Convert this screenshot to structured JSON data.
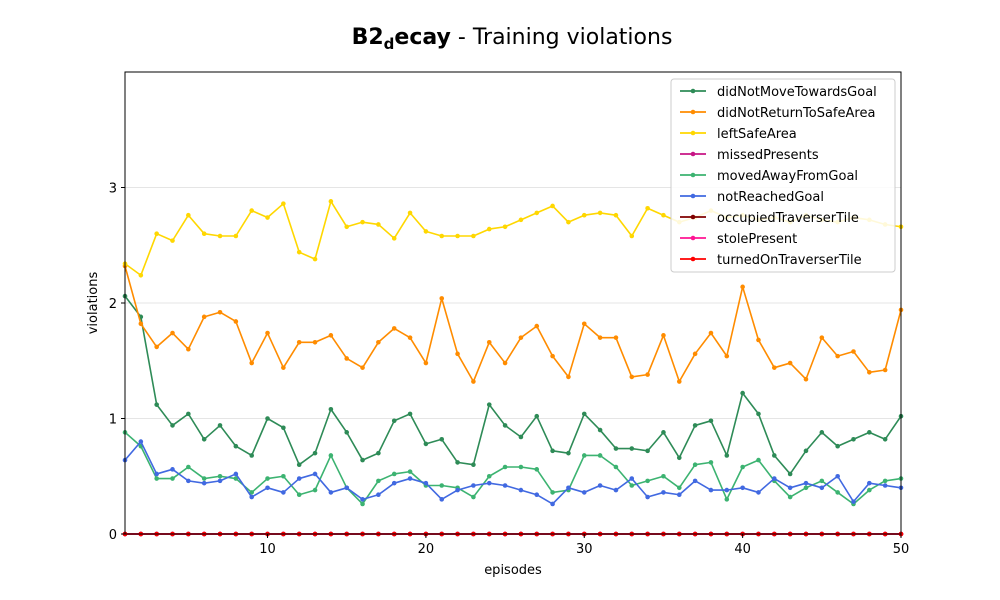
{
  "chart_data": {
    "type": "line",
    "title": {
      "prefix_bold": "B2",
      "subscript_bold": "d",
      "suffix_bold": "ecay",
      "rest": " - Training violations"
    },
    "xlabel": "episodes",
    "ylabel": "violations",
    "xlim": [
      1,
      50
    ],
    "ylim": [
      0,
      4
    ],
    "x_ticks": [
      10,
      20,
      30,
      40,
      50
    ],
    "y_ticks": [
      0,
      1,
      2,
      3
    ],
    "grid": "horizontal",
    "legend_position": "top-right",
    "x": [
      1,
      2,
      3,
      4,
      5,
      6,
      7,
      8,
      9,
      10,
      11,
      12,
      13,
      14,
      15,
      16,
      17,
      18,
      19,
      20,
      21,
      22,
      23,
      24,
      25,
      26,
      27,
      28,
      29,
      30,
      31,
      32,
      33,
      34,
      35,
      36,
      37,
      38,
      39,
      40,
      41,
      42,
      43,
      44,
      45,
      46,
      47,
      48,
      49,
      50
    ],
    "series": [
      {
        "name": "didNotMoveTowardsGoal",
        "color": "#2e8b57",
        "values": [
          2.06,
          1.88,
          1.12,
          0.94,
          1.04,
          0.82,
          0.94,
          0.76,
          0.68,
          1.0,
          0.92,
          0.6,
          0.7,
          1.08,
          0.88,
          0.64,
          0.7,
          0.98,
          1.04,
          0.78,
          0.82,
          0.62,
          0.6,
          1.12,
          0.94,
          0.84,
          1.02,
          0.72,
          0.7,
          1.04,
          0.9,
          0.74,
          0.74,
          0.72,
          0.88,
          0.66,
          0.94,
          0.98,
          0.68,
          1.22,
          1.04,
          0.68,
          0.52,
          0.72,
          0.88,
          0.76,
          0.82,
          0.88,
          0.82,
          1.02
        ]
      },
      {
        "name": "didNotReturnToSafeArea",
        "color": "#ff8c00",
        "values": [
          2.32,
          1.82,
          1.62,
          1.74,
          1.6,
          1.88,
          1.92,
          1.84,
          1.48,
          1.74,
          1.44,
          1.66,
          1.66,
          1.72,
          1.52,
          1.44,
          1.66,
          1.78,
          1.7,
          1.48,
          2.04,
          1.56,
          1.32,
          1.66,
          1.48,
          1.7,
          1.8,
          1.54,
          1.36,
          1.82,
          1.7,
          1.7,
          1.36,
          1.38,
          1.72,
          1.32,
          1.56,
          1.74,
          1.54,
          2.14,
          1.68,
          1.44,
          1.48,
          1.34,
          1.7,
          1.54,
          1.58,
          1.4,
          1.42,
          1.94
        ]
      },
      {
        "name": "leftSafeArea",
        "color": "#ffd700",
        "values": [
          2.34,
          2.24,
          2.6,
          2.54,
          2.76,
          2.6,
          2.58,
          2.58,
          2.8,
          2.74,
          2.86,
          2.44,
          2.38,
          2.88,
          2.66,
          2.7,
          2.68,
          2.56,
          2.78,
          2.62,
          2.58,
          2.58,
          2.58,
          2.64,
          2.66,
          2.72,
          2.78,
          2.84,
          2.7,
          2.76,
          2.78,
          2.76,
          2.58,
          2.82,
          2.76,
          2.7,
          2.74,
          2.8,
          2.74,
          2.76,
          2.72,
          2.74,
          2.7,
          2.76,
          2.72,
          2.7,
          2.74,
          2.72,
          2.68,
          2.66
        ]
      },
      {
        "name": "missedPresents",
        "color": "#c71585",
        "values": [
          0,
          0,
          0,
          0,
          0,
          0,
          0,
          0,
          0,
          0,
          0,
          0,
          0,
          0,
          0,
          0,
          0,
          0,
          0,
          0,
          0,
          0,
          0,
          0,
          0,
          0,
          0,
          0,
          0,
          0,
          0,
          0,
          0,
          0,
          0,
          0,
          0,
          0,
          0,
          0,
          0,
          0,
          0,
          0,
          0,
          0,
          0,
          0,
          0,
          0
        ]
      },
      {
        "name": "movedAwayFromGoal",
        "color": "#3cb371",
        "values": [
          0.88,
          0.76,
          0.48,
          0.48,
          0.58,
          0.48,
          0.5,
          0.48,
          0.36,
          0.48,
          0.5,
          0.34,
          0.38,
          0.68,
          0.4,
          0.26,
          0.46,
          0.52,
          0.54,
          0.42,
          0.42,
          0.4,
          0.32,
          0.5,
          0.58,
          0.58,
          0.56,
          0.36,
          0.38,
          0.68,
          0.68,
          0.58,
          0.42,
          0.46,
          0.5,
          0.4,
          0.6,
          0.62,
          0.3,
          0.58,
          0.64,
          0.46,
          0.32,
          0.4,
          0.46,
          0.36,
          0.26,
          0.38,
          0.46,
          0.48
        ]
      },
      {
        "name": "notReachedGoal",
        "color": "#4169e1",
        "values": [
          0.64,
          0.8,
          0.52,
          0.56,
          0.46,
          0.44,
          0.46,
          0.52,
          0.32,
          0.4,
          0.36,
          0.48,
          0.52,
          0.36,
          0.4,
          0.3,
          0.34,
          0.44,
          0.48,
          0.44,
          0.3,
          0.38,
          0.42,
          0.44,
          0.42,
          0.38,
          0.34,
          0.26,
          0.4,
          0.36,
          0.42,
          0.38,
          0.48,
          0.32,
          0.36,
          0.34,
          0.46,
          0.38,
          0.38,
          0.4,
          0.36,
          0.48,
          0.4,
          0.44,
          0.4,
          0.5,
          0.28,
          0.44,
          0.42,
          0.4
        ]
      },
      {
        "name": "occupiedTraverserTile",
        "color": "#800000",
        "values": [
          0,
          0,
          0,
          0,
          0,
          0,
          0,
          0,
          0,
          0,
          0,
          0,
          0,
          0,
          0,
          0,
          0,
          0,
          0,
          0,
          0,
          0,
          0,
          0,
          0,
          0,
          0,
          0,
          0,
          0,
          0,
          0,
          0,
          0,
          0,
          0,
          0,
          0,
          0,
          0,
          0,
          0,
          0,
          0,
          0,
          0,
          0,
          0,
          0,
          0
        ]
      },
      {
        "name": "stolePresent",
        "color": "#ff1493",
        "values": [
          0,
          0,
          0,
          0,
          0,
          0,
          0,
          0,
          0,
          0,
          0,
          0,
          0,
          0,
          0,
          0,
          0,
          0,
          0,
          0,
          0,
          0,
          0,
          0,
          0,
          0,
          0,
          0,
          0,
          0,
          0,
          0,
          0,
          0,
          0,
          0,
          0,
          0,
          0,
          0,
          0,
          0,
          0,
          0,
          0,
          0,
          0,
          0,
          0,
          0
        ]
      },
      {
        "name": "turnedOnTraverserTile",
        "color": "#ff0000",
        "values": [
          0,
          0,
          0,
          0,
          0,
          0,
          0,
          0,
          0,
          0,
          0,
          0,
          0,
          0,
          0,
          0,
          0,
          0,
          0,
          0,
          0,
          0,
          0,
          0,
          0,
          0,
          0,
          0,
          0,
          0,
          0,
          0,
          0,
          0,
          0,
          0,
          0,
          0,
          0,
          0,
          0,
          0,
          0,
          0,
          0,
          0,
          0,
          0,
          0,
          0
        ]
      }
    ]
  }
}
